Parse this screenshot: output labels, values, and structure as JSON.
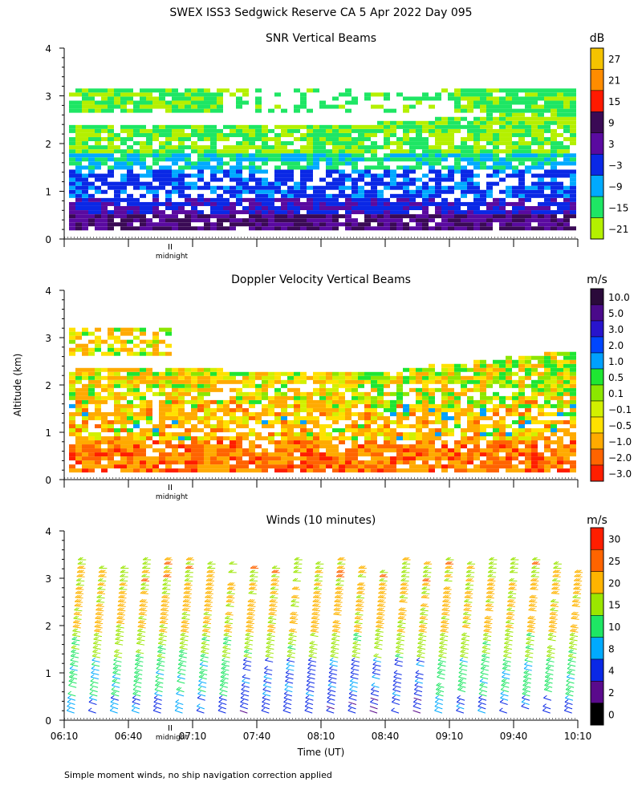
{
  "title": "SWEX ISS3 Sedgwick Reserve CA   5 Apr 2022 Day 095",
  "y_axis_label": "Altitude (km)",
  "x_axis_label": "Time (UT)",
  "midnight_marker": "midnight",
  "footnote": "Simple moment winds, no ship navigation correction applied",
  "x_ticks": [
    "06:10",
    "06:40",
    "07:10",
    "07:40",
    "08:10",
    "08:40",
    "09:10",
    "09:40",
    "10:10"
  ],
  "y_ticks": [
    "0",
    "1",
    "2",
    "3",
    "4"
  ],
  "chart_data": [
    {
      "type": "heatmap",
      "title": "SNR Vertical Beams",
      "colorbar_unit": "dB",
      "colorbar_labels": [
        "27",
        "21",
        "15",
        "9",
        "3",
        "−3",
        "−9",
        "−15",
        "−21"
      ],
      "colorbar_colors": [
        "#f5c300",
        "#ff8c00",
        "#ff1a00",
        "#3a0a55",
        "#5a0aa0",
        "#0a28e6",
        "#00aaff",
        "#1ee664",
        "#b4f000"
      ],
      "xlim": [
        "06:10",
        "10:10"
      ],
      "ylim": [
        0,
        4
      ],
      "bands": [
        {
          "alt": [
            0.2,
            0.5
          ],
          "level": "9"
        },
        {
          "alt": [
            0.5,
            0.8
          ],
          "level": "3"
        },
        {
          "alt": [
            0.8,
            1.4
          ],
          "level": "−3"
        },
        {
          "alt": [
            1.4,
            1.7
          ],
          "level": "−12"
        },
        {
          "alt": [
            1.7,
            2.3
          ],
          "level": "−15"
        },
        {
          "alt": [
            2.3,
            2.8
          ],
          "level": "−21"
        },
        {
          "alt": [
            2.8,
            3.2
          ],
          "level": "−15"
        }
      ]
    },
    {
      "type": "heatmap",
      "title": "Doppler Velocity Vertical Beams",
      "colorbar_unit": "m/s",
      "colorbar_labels": [
        "10.0",
        "5.0",
        "3.0",
        "2.0",
        "1.0",
        "0.5",
        "0.1",
        "−0.1",
        "−0.5",
        "−1.0",
        "−2.0",
        "−3.0"
      ],
      "colorbar_colors": [
        "#2a0a3a",
        "#4a0a8a",
        "#2814cc",
        "#0046ff",
        "#00a0ff",
        "#1ee632",
        "#8ce600",
        "#d2f000",
        "#ffe100",
        "#ffaa00",
        "#ff6400",
        "#ff1e00"
      ],
      "xlim": [
        "06:10",
        "10:10"
      ],
      "ylim": [
        0,
        4
      ],
      "dominant_range": [
        "−2.0",
        "0.5"
      ]
    },
    {
      "type": "wind_barbs",
      "title": "Winds (10 minutes)",
      "colorbar_unit": "m/s",
      "colorbar_labels": [
        "30",
        "25",
        "20",
        "15",
        "10",
        "8",
        "4",
        "2",
        "0"
      ],
      "colorbar_colors": [
        "#ff1e00",
        "#ff6400",
        "#ffb400",
        "#9be600",
        "#1ee664",
        "#00aaff",
        "#0a28e6",
        "#5a0a8c",
        "#000000"
      ],
      "xlim": [
        "06:10",
        "10:10"
      ],
      "ylim": [
        0,
        4
      ],
      "interval_minutes": 10,
      "profiles": 24
    }
  ]
}
